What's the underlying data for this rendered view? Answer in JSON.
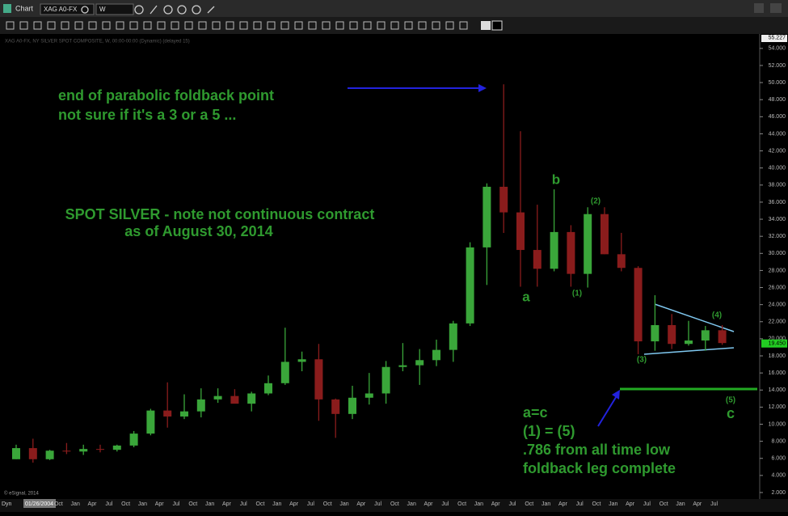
{
  "toolbar": {
    "title": "Chart",
    "symbol": "XAG A0-FX",
    "interval": "W"
  },
  "chart_data": {
    "type": "candlestick",
    "header": "XAG A0-FX, NY SILVER SPOT COMPOSITE, W, 00:00-00:00 (Dynamic) (delayed 15)",
    "dyn": "Dyn",
    "start_date": "01/26/2004",
    "copyright": "© eSignal, 2014",
    "categories": [
      null,
      null,
      null,
      "Oct",
      "Jan",
      "Apr",
      "Jul",
      "Oct",
      "Jan",
      "Apr",
      "Jul",
      "Oct",
      "Jan",
      "Apr",
      "Jul",
      "Oct",
      "Jan",
      "Apr",
      "Jul",
      "Oct",
      "Jan",
      "Apr",
      "Jul",
      "Oct",
      "Jan",
      "Apr",
      "Jul",
      "Oct",
      "Jan",
      "Apr",
      "Jul",
      "Oct",
      "Jan",
      "Apr",
      "Jul",
      "Oct",
      "Jan",
      "Apr",
      "Jul",
      "Oct",
      "Jan",
      "Apr",
      "Jul"
    ],
    "open": [
      5.9,
      7.2,
      5.9,
      6.9,
      6.8,
      7.1,
      7.0,
      7.5,
      8.9,
      11.6,
      10.9,
      11.5,
      12.9,
      13.3,
      12.4,
      13.6,
      14.8,
      17.3,
      17.6,
      12.9,
      11.2,
      13.1,
      13.6,
      16.7,
      16.9,
      17.5,
      18.7,
      21.8,
      30.7,
      37.8,
      34.8,
      30.4,
      28.2,
      32.5,
      27.6,
      34.6,
      29.9,
      28.3,
      19.7,
      21.6,
      19.4,
      19.8,
      21.0
    ],
    "high": [
      7.6,
      8.3,
      7.0,
      7.8,
      7.6,
      7.6,
      7.6,
      9.2,
      11.8,
      14.9,
      13.5,
      14.2,
      14.2,
      14.1,
      13.8,
      15.7,
      21.3,
      18.5,
      19.4,
      13.0,
      14.5,
      16.0,
      17.4,
      19.5,
      18.8,
      19.9,
      22.1,
      31.3,
      38.2,
      49.8,
      44.3,
      35.7,
      37.5,
      33.3,
      35.4,
      35.4,
      32.4,
      28.5,
      25.1,
      22.9,
      22.1,
      21.5,
      21.6
    ],
    "low": [
      5.9,
      5.5,
      5.8,
      6.5,
      6.4,
      6.7,
      6.8,
      7.3,
      8.7,
      9.6,
      10.6,
      10.8,
      12.5,
      12.5,
      11.5,
      13.4,
      14.6,
      16.2,
      10.4,
      8.4,
      10.6,
      12.3,
      12.4,
      16.2,
      14.6,
      16.8,
      17.3,
      21.5,
      26.3,
      32.4,
      26.1,
      26.1,
      27.9,
      26.1,
      26.0,
      29.9,
      27.9,
      18.2,
      18.6,
      18.8,
      19.2,
      18.6,
      19.3
    ],
    "close": [
      7.2,
      5.9,
      6.9,
      6.8,
      7.1,
      7.0,
      7.5,
      8.9,
      11.6,
      10.9,
      11.5,
      12.9,
      13.3,
      12.4,
      13.6,
      14.8,
      17.3,
      17.6,
      12.9,
      11.2,
      13.1,
      13.6,
      16.7,
      16.9,
      17.5,
      18.7,
      21.8,
      30.7,
      37.8,
      34.8,
      30.4,
      28.2,
      32.5,
      27.6,
      34.6,
      29.9,
      28.3,
      19.7,
      21.6,
      19.4,
      19.8,
      21.0,
      19.5
    ],
    "up_color": "#3aa63a",
    "down_color": "#8a1c1c",
    "ylim": [
      1.24,
      55.69
    ],
    "yticks": [
      {
        "value": 2,
        "label": "2.000"
      },
      {
        "value": 4,
        "label": "4.000"
      },
      {
        "value": 6,
        "label": "6.000"
      },
      {
        "value": 8,
        "label": "8.000"
      },
      {
        "value": 10,
        "label": "10.000"
      },
      {
        "value": 12,
        "label": "12.000"
      },
      {
        "value": 14,
        "label": "14.000"
      },
      {
        "value": 16,
        "label": "16.000"
      },
      {
        "value": 18,
        "label": "18.000"
      },
      {
        "value": 20,
        "label": "20.000"
      },
      {
        "value": 22,
        "label": "22.000"
      },
      {
        "value": 24,
        "label": "24.000"
      },
      {
        "value": 26,
        "label": "26.000"
      },
      {
        "value": 28,
        "label": "28.000"
      },
      {
        "value": 30,
        "label": "30.000"
      },
      {
        "value": 32,
        "label": "32.000"
      },
      {
        "value": 34,
        "label": "34.000"
      },
      {
        "value": 36,
        "label": "36.000"
      },
      {
        "value": 38,
        "label": "38.000"
      },
      {
        "value": 40,
        "label": "40.000"
      },
      {
        "value": 42,
        "label": "42.000"
      },
      {
        "value": 44,
        "label": "44.000"
      },
      {
        "value": 46,
        "label": "46.000"
      },
      {
        "value": 48,
        "label": "48.000"
      },
      {
        "value": 50,
        "label": "50.000"
      },
      {
        "value": 52,
        "label": "52.000"
      },
      {
        "value": 54,
        "label": "54.000"
      }
    ],
    "top_value": 55.227,
    "last_price": {
      "value": 19.45,
      "label": "19.450"
    },
    "last_price_color": "#22cc22",
    "annotations": [
      "end of parabolic foldback point",
      "not sure if it's a 3 or a 5 ...",
      "SPOT SILVER - note not continuous contract",
      "as of August 30, 2014",
      "a",
      "b",
      "(1)",
      "(2)",
      "(3)",
      "(4)",
      "(5)",
      "c",
      "a=c",
      "(1) = (5)",
      ".786 from all time low",
      "foldback leg complete"
    ]
  }
}
